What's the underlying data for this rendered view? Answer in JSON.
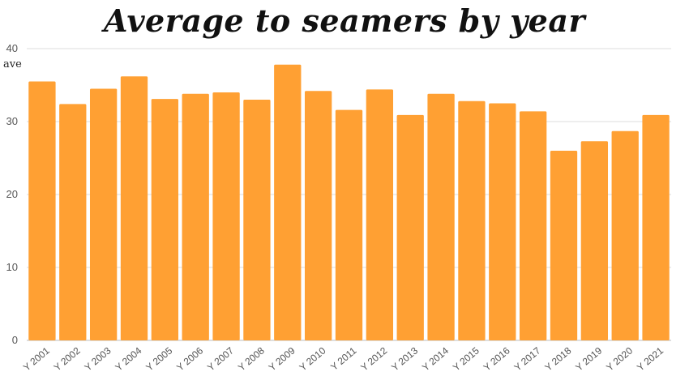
{
  "chart_data": {
    "type": "bar",
    "title": "Average to seamers by year",
    "ylabel": "ave",
    "xlabel": "",
    "ylim": [
      0,
      40
    ],
    "yticks": [
      0,
      10,
      20,
      30,
      40
    ],
    "grid": true,
    "bar_color": "#ffa033",
    "categories": [
      "Y 2001",
      "Y 2002",
      "Y 2003",
      "Y 2004",
      "Y 2005",
      "Y 2006",
      "Y 2007",
      "Y 2008",
      "Y 2009",
      "Y 2010",
      "Y 2011",
      "Y 2012",
      "Y 2013",
      "Y 2014",
      "Y 2015",
      "Y 2016",
      "Y 2017",
      "Y 2018",
      "Y 2019",
      "Y 2020",
      "Y 2021"
    ],
    "values": [
      35.5,
      32.4,
      34.5,
      36.2,
      33.1,
      33.8,
      34.0,
      33.0,
      37.8,
      34.2,
      31.6,
      34.4,
      30.9,
      33.8,
      32.8,
      32.5,
      31.4,
      26.0,
      27.3,
      28.7,
      30.9
    ]
  }
}
